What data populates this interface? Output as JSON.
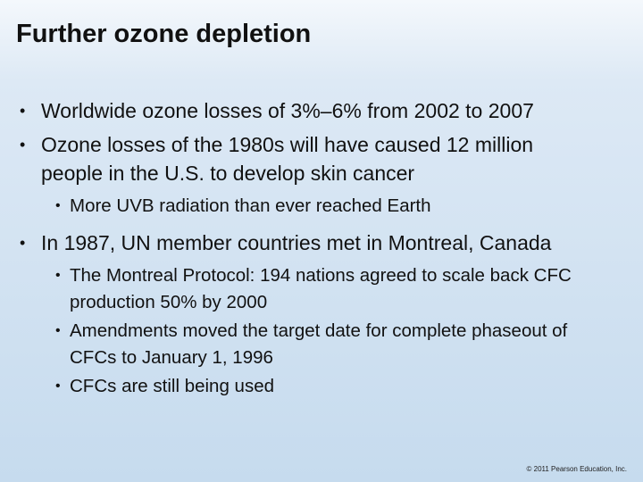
{
  "title": "Further ozone depletion",
  "bullets": [
    {
      "text": "Worldwide ozone losses of 3%–6% from 2002 to 2007",
      "sub": []
    },
    {
      "text": "Ozone losses of the 1980s will have caused 12 million people in the U.S. to develop skin cancer",
      "sub": [
        "More UVB radiation than ever reached Earth"
      ]
    },
    {
      "text": "In 1987, UN member countries met in Montreal, Canada",
      "sub": [
        "The Montreal Protocol: 194 nations agreed to scale back CFC production 50% by 2000",
        "Amendments moved the target date for complete phaseout of CFCs to January 1, 1996",
        "CFCs are still being used"
      ]
    }
  ],
  "copyright": "© 2011 Pearson Education, Inc."
}
